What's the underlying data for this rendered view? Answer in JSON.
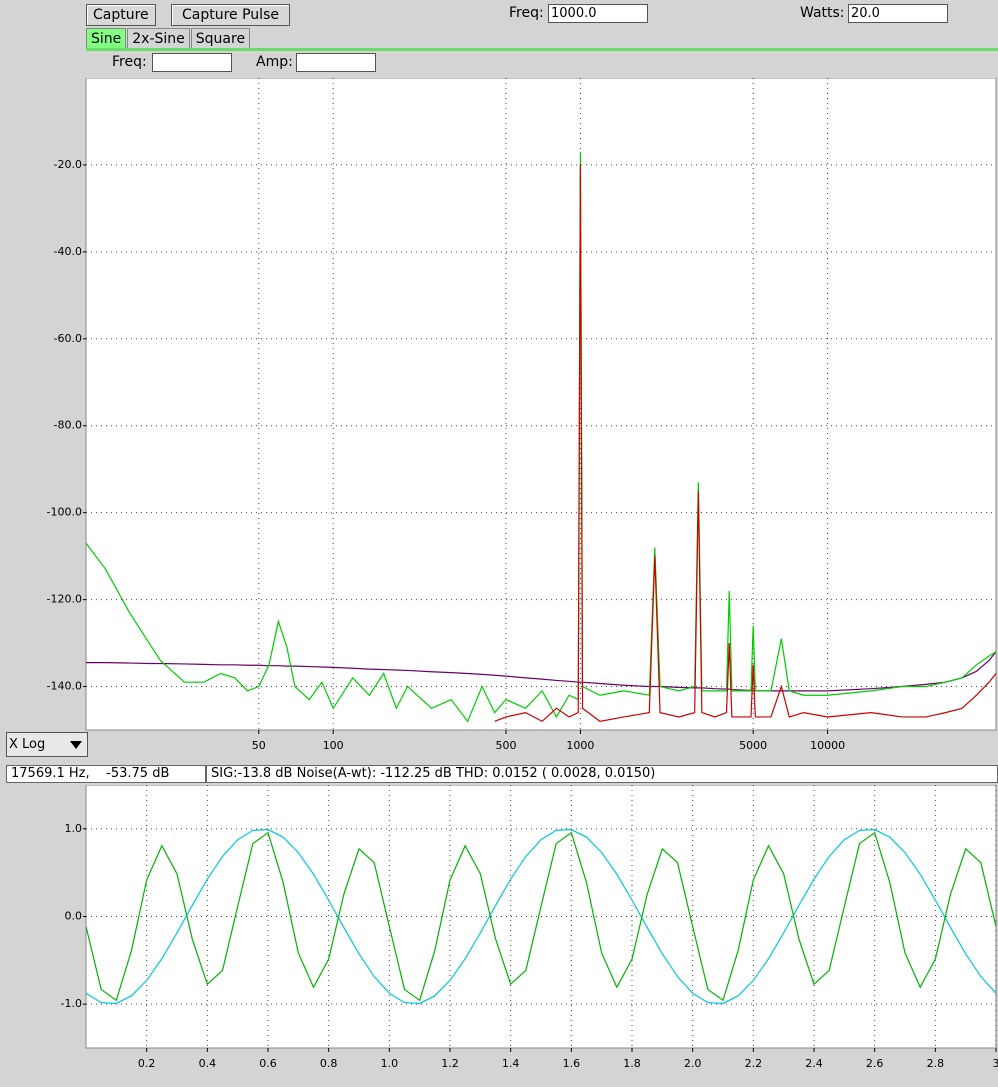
{
  "toolbar": {
    "buttons": [
      "Capture",
      "Capture Pulse"
    ],
    "freq_label": "Freq:",
    "freq_value": "1000.0",
    "watts_label": "Watts:",
    "watts_value": "20.0"
  },
  "tabs": {
    "items": [
      "Sine",
      "2x-Sine",
      "Square"
    ],
    "active": 0
  },
  "params": {
    "freq_label": "Freq:",
    "amp_label": "Amp:"
  },
  "scale_select": "X Log",
  "status": {
    "cursor": "17569.1 Hz,    -53.75 dB",
    "summary": "SIG:-13.8 dB Noise(A-wt): -112.25 dB THD: 0.0152 ( 0.0028, 0.0150)"
  },
  "chart_data": [
    {
      "type": "line",
      "xscale": "log",
      "grid": true,
      "x": [
        10,
        12,
        15,
        18,
        20,
        25,
        30,
        35,
        40,
        45,
        50,
        55,
        60,
        65,
        70,
        80,
        90,
        100,
        120,
        140,
        160,
        180,
        200,
        250,
        300,
        350,
        400,
        450,
        500,
        600,
        700,
        800,
        900,
        980,
        1000,
        1020,
        1200,
        1500,
        1900,
        2000,
        2100,
        2500,
        2900,
        3000,
        3100,
        3500,
        3900,
        4000,
        4100,
        4900,
        5000,
        5100,
        5900,
        6500,
        7000,
        8000,
        10000,
        15000,
        20000,
        25000,
        30000,
        35000,
        40000,
        45000,
        48000
      ],
      "series": [
        {
          "color": "#6a006a",
          "values": [
            -134.5,
            -134.5,
            -134.6,
            -134.7,
            -134.7,
            -134.8,
            -134.9,
            -135,
            -135,
            -135.1,
            -135.1,
            -135.2,
            -135.2,
            -135.3,
            -135.3,
            -135.4,
            -135.5,
            -135.6,
            -135.8,
            -136,
            -136.1,
            -136.2,
            -136.3,
            -136.6,
            -136.8,
            -137,
            -137.2,
            -137.4,
            -137.6,
            -138,
            -138.3,
            -138.6,
            -138.8,
            -139,
            -139,
            -139,
            -139.3,
            -139.7,
            -140,
            -140,
            -140,
            -140.2,
            -140.3,
            -140.3,
            -140.3,
            -140.5,
            -140.6,
            -140.6,
            -140.7,
            -140.9,
            -141,
            -141,
            -141,
            -141,
            -141,
            -141,
            -141,
            -140.5,
            -140,
            -139.5,
            -139,
            -138,
            -136.5,
            -134,
            -132
          ]
        },
        {
          "color": "#00cc00",
          "values": [
            -107,
            -113,
            -123,
            -130,
            -134,
            -139,
            -139,
            -137,
            -138,
            -141,
            -140,
            -135,
            -125,
            -131,
            -140,
            -143,
            -139,
            -145,
            -138,
            -142,
            -137,
            -145,
            -140,
            -145,
            -143,
            -148,
            -140,
            -146,
            -143,
            -145,
            -141,
            -147,
            -142,
            -143,
            -17,
            -140,
            -142,
            -141,
            -142,
            -108,
            -140,
            -141,
            -140,
            -93,
            -141,
            -141,
            -141,
            -118,
            -141,
            -141,
            -126,
            -141,
            -141,
            -129,
            -141,
            -142,
            -142,
            -141,
            -140,
            -140,
            -139,
            -138,
            -135,
            -133,
            -132
          ]
        },
        {
          "color": "#cc0000",
          "values": [
            null,
            null,
            null,
            null,
            null,
            null,
            null,
            null,
            null,
            null,
            null,
            null,
            null,
            null,
            null,
            null,
            null,
            null,
            null,
            null,
            null,
            null,
            null,
            null,
            null,
            null,
            null,
            -148,
            -147,
            -146,
            -148,
            -145,
            -147,
            -146,
            -20,
            -145,
            -148,
            -147,
            -146,
            -110,
            -146,
            -147,
            -146,
            -95,
            -146,
            -147,
            -146,
            -130,
            -147,
            -147,
            -135,
            -147,
            -147,
            -140,
            -147,
            -146,
            -147,
            -146,
            -147,
            -147,
            -146,
            -145,
            -142,
            -139,
            -137
          ]
        }
      ],
      "xlim": [
        10,
        48000
      ],
      "ylim": [
        -150,
        0
      ],
      "xticks": [
        50,
        100,
        500,
        1000,
        5000,
        10000
      ],
      "yticks": [
        {
          "value": -20,
          "label": "-20.0"
        },
        {
          "value": -40,
          "label": "-40.0"
        },
        {
          "value": -60,
          "label": "-60.0"
        },
        {
          "value": -80,
          "label": "-80.0"
        },
        {
          "value": -100,
          "label": "-100.0"
        },
        {
          "value": -120,
          "label": "-120.0"
        },
        {
          "value": -140,
          "label": "-140.0"
        }
      ]
    },
    {
      "type": "line",
      "grid": true,
      "x": [
        0,
        0.05,
        0.1,
        0.15,
        0.2,
        0.25,
        0.3,
        0.35,
        0.4,
        0.45,
        0.5,
        0.55,
        0.6,
        0.65,
        0.7,
        0.75,
        0.8,
        0.85,
        0.9,
        0.95,
        1,
        1.05,
        1.1,
        1.15,
        1.2,
        1.25,
        1.3,
        1.35,
        1.4,
        1.45,
        1.5,
        1.55,
        1.6,
        1.65,
        1.7,
        1.75,
        1.8,
        1.85,
        1.9,
        1.95,
        2,
        2.05,
        2.1,
        2.15,
        2.2,
        2.25,
        2.3,
        2.35,
        2.4,
        2.45,
        2.5,
        2.55,
        2.6,
        2.65,
        2.7,
        2.75,
        2.8,
        2.85,
        2.9,
        2.95,
        3
      ],
      "series": [
        {
          "color": "#00c8dc",
          "values": [
            -0.876,
            -0.982,
            -0.992,
            -0.905,
            -0.729,
            -0.482,
            -0.187,
            0.125,
            0.426,
            0.685,
            0.876,
            0.982,
            0.992,
            0.905,
            0.729,
            0.482,
            0.187,
            -0.125,
            -0.426,
            -0.685,
            -0.876,
            -0.982,
            -0.992,
            -0.905,
            -0.729,
            -0.482,
            -0.187,
            0.125,
            0.426,
            0.685,
            0.876,
            0.982,
            0.992,
            0.905,
            0.729,
            0.482,
            0.187,
            -0.125,
            -0.426,
            -0.685,
            -0.876,
            -0.982,
            -0.992,
            -0.905,
            -0.729,
            -0.482,
            -0.187,
            0.125,
            0.426,
            0.685,
            0.876,
            0.982,
            0.992,
            0.905,
            0.729,
            0.482,
            0.187,
            -0.125,
            -0.426,
            -0.685,
            -0.876
          ]
        },
        {
          "color": "#00b400",
          "values": [
            -0.114,
            -0.832,
            -0.956,
            -0.387,
            0.416,
            0.807,
            0.487,
            -0.253,
            -0.772,
            -0.615,
            0.114,
            0.832,
            0.956,
            0.387,
            -0.416,
            -0.807,
            -0.487,
            0.253,
            0.772,
            0.615,
            -0.114,
            -0.832,
            -0.956,
            -0.387,
            0.416,
            0.807,
            0.487,
            -0.253,
            -0.772,
            -0.615,
            0.114,
            0.832,
            0.956,
            0.387,
            -0.416,
            -0.807,
            -0.487,
            0.253,
            0.772,
            0.615,
            -0.114,
            -0.832,
            -0.956,
            -0.387,
            0.416,
            0.807,
            0.487,
            -0.253,
            -0.772,
            -0.615,
            0.114,
            0.832,
            0.956,
            0.387,
            -0.416,
            -0.807,
            -0.487,
            0.253,
            0.772,
            0.615,
            -0.114
          ]
        }
      ],
      "xlim": [
        0,
        3
      ],
      "ylim": [
        -1.5,
        1.5
      ],
      "xticks": [
        0.2,
        0.4,
        0.6,
        0.8,
        {
          "value": 1,
          "label": "1.0"
        },
        1.2,
        1.4,
        1.6,
        1.8,
        {
          "value": 2,
          "label": "2.0"
        },
        2.2,
        2.4,
        2.6,
        2.8,
        3
      ],
      "yticks": [
        {
          "value": 1,
          "label": "1.0"
        },
        {
          "value": 0,
          "label": "0.0"
        },
        {
          "value": -1,
          "label": "-1.0"
        }
      ]
    }
  ]
}
